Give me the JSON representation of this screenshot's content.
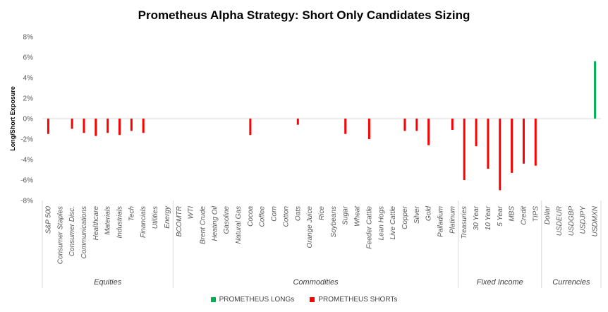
{
  "chart_data": {
    "type": "bar",
    "title": "Prometheus Alpha Strategy: Short Only Candidates Sizing",
    "ylabel": "Long/Short Exposure",
    "xlabel": "",
    "ylim": [
      -8,
      8
    ],
    "yticks": [
      "8%",
      "6%",
      "4%",
      "2%",
      "0%",
      "-2%",
      "-4%",
      "-6%",
      "-8%"
    ],
    "categories": [
      "S&P 500",
      "Consumer Staples",
      "Consumer Disc.",
      "Communications",
      "Healthcare",
      "Materials",
      "Industrials",
      "Tech",
      "Financials",
      "Utilities",
      "Energy",
      "BCOMTR",
      "WTI",
      "Brent Crude",
      "Heating Oil",
      "Gasoline",
      "Natural Gas",
      "Cocoa",
      "Coffee",
      "Corn",
      "Cotton",
      "Oats",
      "Orange Juice",
      "Rice",
      "Soybeans",
      "Sugar",
      "Wheat",
      "Feeder Cattle",
      "Lean Hogs",
      "Live Cattle",
      "Copper",
      "Silver",
      "Gold",
      "Palladium",
      "Platinum",
      "Treasuries",
      "30 Year",
      "10 Year",
      "5 Year",
      "MBS",
      "Credit",
      "TIPS",
      "Dollar",
      "USDEUR",
      "USDGBP",
      "USDJPY",
      "USDMXN"
    ],
    "groups": [
      {
        "label": "Equities",
        "start": 0,
        "end": 10
      },
      {
        "label": "Commodities",
        "start": 11,
        "end": 34
      },
      {
        "label": "Fixed Income",
        "start": 35,
        "end": 41
      },
      {
        "label": "Currencies",
        "start": 42,
        "end": 46
      }
    ],
    "series": [
      {
        "name": "PROMETHEUS LONGs",
        "color": "#00b050",
        "values": [
          null,
          null,
          null,
          null,
          null,
          null,
          null,
          null,
          null,
          null,
          null,
          null,
          null,
          null,
          null,
          null,
          null,
          null,
          null,
          null,
          null,
          null,
          null,
          null,
          null,
          null,
          null,
          null,
          null,
          null,
          null,
          null,
          null,
          null,
          null,
          null,
          null,
          null,
          null,
          null,
          null,
          null,
          null,
          null,
          null,
          null,
          5.6
        ]
      },
      {
        "name": "PROMETHEUS SHORTs",
        "color": "#ff0000",
        "values": [
          -1.5,
          null,
          -1.0,
          -1.4,
          -1.7,
          -1.4,
          -1.6,
          -1.2,
          -1.4,
          null,
          null,
          null,
          null,
          null,
          null,
          null,
          null,
          -1.6,
          null,
          null,
          null,
          -0.6,
          null,
          null,
          null,
          -1.5,
          null,
          -2.0,
          null,
          null,
          -1.2,
          -1.2,
          -2.6,
          null,
          -1.1,
          -6.0,
          -2.7,
          -4.9,
          -7.0,
          -5.3,
          -4.4,
          -4.6,
          null,
          null,
          null,
          null,
          null
        ]
      }
    ],
    "grid": false,
    "legend_position": "bottom"
  }
}
